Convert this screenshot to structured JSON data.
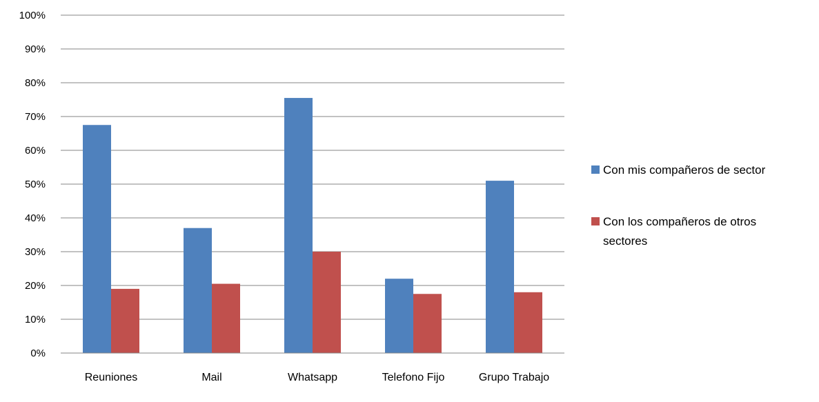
{
  "chart_data": {
    "type": "bar",
    "categories": [
      "Reuniones",
      "Mail",
      "Whatsapp",
      "Telefono Fijo",
      "Grupo Trabajo"
    ],
    "series": [
      {
        "name": "Con mis compañeros de sector",
        "values": [
          0.675,
          0.37,
          0.755,
          0.22,
          0.51
        ],
        "color": "#4F81BD"
      },
      {
        "name": "Con los compañeros de otros sectores",
        "values": [
          0.19,
          0.205,
          0.3,
          0.175,
          0.18
        ],
        "color": "#C0504D"
      }
    ],
    "title": "",
    "xlabel": "",
    "ylabel": "",
    "ylim": [
      0,
      1
    ],
    "yticks": [
      "0%",
      "10%",
      "20%",
      "30%",
      "40%",
      "50%",
      "60%",
      "70%",
      "80%",
      "90%",
      "100%"
    ],
    "grid": true,
    "legend_position": "right"
  }
}
